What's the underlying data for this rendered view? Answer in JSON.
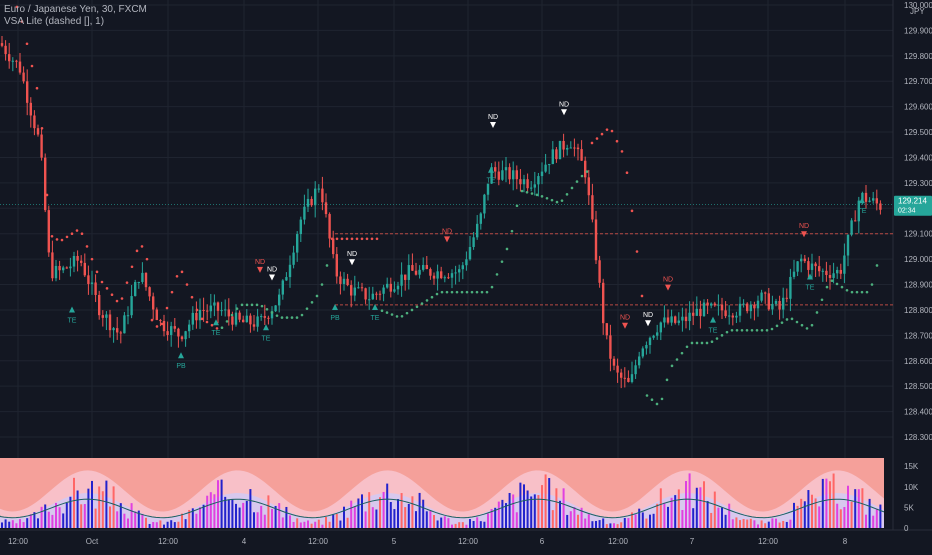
{
  "header": {
    "symbol_line": "Euro / Japanese Yen, 30, FXCM",
    "indicator_line": "VSA Lite (dashed [], 1)"
  },
  "currency": "JPY",
  "colors": {
    "up": "#26a69a",
    "down": "#ef5350",
    "grid": "#1f2430",
    "dots_down": "#ef5350",
    "dots_up": "#4caf7d",
    "volume_bg": "#f5a09a"
  },
  "chart_data": [
    {
      "type": "candlestick",
      "title": "Euro / Japanese Yen, 30, FXCM",
      "ylim": [
        128.3,
        130.0
      ],
      "price_ticks": [
        "130.000",
        "129.900",
        "129.800",
        "129.700",
        "129.600",
        "129.500",
        "129.400",
        "129.300",
        "129.200",
        "129.100",
        "129.000",
        "128.900",
        "128.800",
        "128.700",
        "128.600",
        "128.500",
        "128.400",
        "128.300"
      ],
      "x_ticks": [
        "12:00",
        "Oct",
        "12:00",
        "4",
        "12:00",
        "5",
        "12:00",
        "6",
        "12:00",
        "7",
        "12:00",
        "8"
      ],
      "last_price": "129.214",
      "countdown": "02:34",
      "levels": [
        129.1,
        128.82
      ],
      "series": [
        {
          "name": "price",
          "keypoints": [
            [
              0,
              129.85
            ],
            [
              20,
              129.75
            ],
            [
              40,
              129.45
            ],
            [
              50,
              128.95
            ],
            [
              60,
              128.95
            ],
            [
              80,
              129.0
            ],
            [
              100,
              128.8
            ],
            [
              120,
              128.7
            ],
            [
              140,
              128.95
            ],
            [
              160,
              128.75
            ],
            [
              180,
              128.7
            ],
            [
              200,
              128.8
            ],
            [
              220,
              128.8
            ],
            [
              240,
              128.75
            ],
            [
              260,
              128.75
            ],
            [
              280,
              128.85
            ],
            [
              300,
              129.15
            ],
            [
              320,
              129.3
            ],
            [
              335,
              128.95
            ],
            [
              350,
              128.88
            ],
            [
              370,
              128.85
            ],
            [
              390,
              128.9
            ],
            [
              410,
              128.95
            ],
            [
              430,
              128.95
            ],
            [
              460,
              128.95
            ],
            [
              480,
              129.15
            ],
            [
              490,
              129.35
            ],
            [
              510,
              129.33
            ],
            [
              530,
              129.3
            ],
            [
              550,
              129.4
            ],
            [
              570,
              129.47
            ],
            [
              585,
              129.35
            ],
            [
              595,
              129.05
            ],
            [
              605,
              128.7
            ],
            [
              615,
              128.55
            ],
            [
              630,
              128.5
            ],
            [
              640,
              128.65
            ],
            [
              660,
              128.75
            ],
            [
              680,
              128.75
            ],
            [
              700,
              128.8
            ],
            [
              720,
              128.8
            ],
            [
              740,
              128.8
            ],
            [
              760,
              128.85
            ],
            [
              780,
              128.8
            ],
            [
              800,
              129.0
            ],
            [
              820,
              128.95
            ],
            [
              840,
              128.95
            ],
            [
              860,
              129.25
            ],
            [
              880,
              129.21
            ]
          ]
        }
      ],
      "annotations": [
        {
          "text": "TE",
          "x": 72,
          "y": 128.79,
          "dir": "up"
        },
        {
          "text": "PB",
          "x": 181,
          "y": 128.61,
          "dir": "up"
        },
        {
          "text": "TE",
          "x": 216,
          "y": 128.74,
          "dir": "up"
        },
        {
          "text": "ND",
          "x": 260,
          "y": 128.95,
          "dir": "down"
        },
        {
          "text": "ND",
          "x": 272,
          "y": 128.92,
          "dir": "down-white"
        },
        {
          "text": "TE",
          "x": 266,
          "y": 128.72,
          "dir": "up"
        },
        {
          "text": "PB",
          "x": 335,
          "y": 128.8,
          "dir": "up"
        },
        {
          "text": "ND",
          "x": 352,
          "y": 128.98,
          "dir": "down-white"
        },
        {
          "text": "TE",
          "x": 375,
          "y": 128.8,
          "dir": "up"
        },
        {
          "text": "ND",
          "x": 447,
          "y": 129.07,
          "dir": "down"
        },
        {
          "text": "ND",
          "x": 493,
          "y": 129.52,
          "dir": "down-white"
        },
        {
          "text": "TE",
          "x": 491,
          "y": 129.34,
          "dir": "up"
        },
        {
          "text": "ND",
          "x": 564,
          "y": 129.57,
          "dir": "down-white"
        },
        {
          "text": "ND",
          "x": 625,
          "y": 128.73,
          "dir": "down"
        },
        {
          "text": "ND",
          "x": 648,
          "y": 128.74,
          "dir": "down-white"
        },
        {
          "text": "ND",
          "x": 668,
          "y": 128.88,
          "dir": "down"
        },
        {
          "text": "TE",
          "x": 713,
          "y": 128.75,
          "dir": "up"
        },
        {
          "text": "ND",
          "x": 804,
          "y": 129.09,
          "dir": "down"
        },
        {
          "text": "TE",
          "x": 810,
          "y": 128.92,
          "dir": "up"
        },
        {
          "text": "TE",
          "x": 862,
          "y": 129.22,
          "dir": "up"
        }
      ]
    },
    {
      "type": "bar",
      "title": "VSA Lite Volume",
      "y_ticks": [
        "15K",
        "10K",
        "5K",
        "0"
      ],
      "ylim": [
        0,
        17000
      ]
    }
  ]
}
